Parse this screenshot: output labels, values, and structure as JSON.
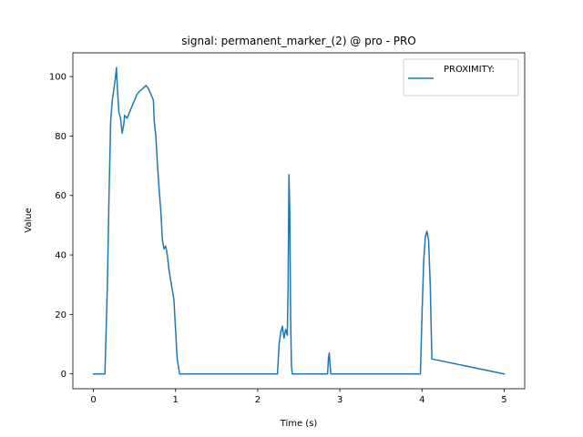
{
  "chart_data": {
    "type": "line",
    "title": "signal: permanent_marker_(2) @ pro - PRO",
    "xlabel": "Time (s)",
    "ylabel": "Value",
    "xlim": [
      -0.25,
      5.25
    ],
    "ylim": [
      -5,
      108
    ],
    "x_ticks": [
      0,
      1,
      2,
      3,
      4,
      5
    ],
    "y_ticks": [
      0,
      20,
      40,
      60,
      80,
      100
    ],
    "grid": false,
    "legend_position": "top-right",
    "line_color": "#1f77b4",
    "series": [
      {
        "name": "PROXIMITY:",
        "x": [
          0,
          0.14,
          0.15,
          0.17,
          0.19,
          0.21,
          0.23,
          0.25,
          0.27,
          0.28,
          0.29,
          0.31,
          0.33,
          0.35,
          0.37,
          0.38,
          0.41,
          0.44,
          0.47,
          0.5,
          0.53,
          0.56,
          0.6,
          0.64,
          0.67,
          0.7,
          0.73,
          0.74,
          0.76,
          0.78,
          0.8,
          0.82,
          0.84,
          0.86,
          0.88,
          0.9,
          0.92,
          0.95,
          0.98,
          1.0,
          1.02,
          1.05,
          1.08,
          1.1,
          1.12,
          2.0,
          2.24,
          2.26,
          2.28,
          2.3,
          2.32,
          2.34,
          2.36,
          2.37,
          2.38,
          2.39,
          2.4,
          2.41,
          2.42,
          2.43,
          2.85,
          2.86,
          2.87,
          2.88,
          2.89,
          2.9,
          2.91,
          3.5,
          3.98,
          4.0,
          4.02,
          4.04,
          4.06,
          4.08,
          4.1,
          4.12,
          5.0
        ],
        "values": [
          0,
          0,
          10,
          30,
          60,
          85,
          92,
          96,
          100,
          103,
          97,
          88,
          86,
          81,
          84,
          87,
          86,
          88,
          90,
          92,
          94,
          95,
          96,
          97,
          96,
          94,
          92,
          85,
          80,
          70,
          62,
          55,
          45,
          42,
          43,
          40,
          35,
          30,
          25,
          15,
          5,
          0,
          0,
          0,
          0,
          0,
          0,
          10,
          14,
          16,
          12,
          15,
          13,
          30,
          67,
          55,
          20,
          3,
          0,
          0,
          0,
          5,
          7,
          3,
          0,
          0,
          0,
          0,
          0,
          20,
          38,
          46,
          48,
          45,
          30,
          5,
          0
        ]
      }
    ]
  }
}
